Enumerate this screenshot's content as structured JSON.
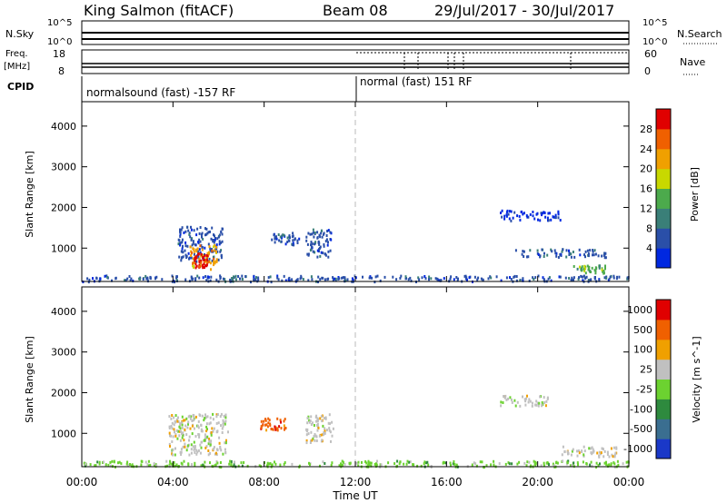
{
  "header": {
    "station": "King Salmon (fitACF)",
    "beam": "Beam 08",
    "dates": "29/Jul/2017 - 30/Jul/2017"
  },
  "sky_panel": {
    "left_label": "N.Sky",
    "left_ticks": [
      "10^5",
      "10^0"
    ],
    "right_label": "N.Search",
    "right_ticks": [
      "10^5",
      "10^0"
    ]
  },
  "freq_panel": {
    "left_label_1": "Freq.",
    "left_label_2": "[MHz]",
    "left_ticks": [
      "18",
      "8"
    ],
    "right_label": "Nave",
    "right_ticks": [
      "60",
      "0"
    ]
  },
  "cpid_panel": {
    "label": "CPID",
    "modes": [
      "normalsound (fast) -157 RF",
      "normal (fast) 151 RF"
    ]
  },
  "chart_data": [
    {
      "type": "heatmap",
      "name": "power",
      "xlabel": "",
      "ylabel": "Slant Range [km]",
      "x_range_hours": [
        0,
        24
      ],
      "ylim": [
        180,
        4600
      ],
      "yticks": [
        1000,
        2000,
        3000,
        4000
      ],
      "colorbar_label": "Power [dB]",
      "colorbar_ticks": [
        "4",
        "8",
        "12",
        "16",
        "20",
        "24",
        "28"
      ],
      "colorbar_colors": [
        "#0028e0",
        "#2a4fa8",
        "#3a7f78",
        "#4caa4c",
        "#c8d800",
        "#f0a000",
        "#f06000",
        "#e00000"
      ],
      "patches": [
        {
          "t0": 0.0,
          "t1": 24.0,
          "r0": 200,
          "r1": 350,
          "level": 1
        },
        {
          "t0": 4.2,
          "t1": 6.2,
          "r0": 700,
          "r1": 1550,
          "level": 1
        },
        {
          "t0": 4.7,
          "t1": 5.9,
          "r0": 500,
          "r1": 1100,
          "level": 5
        },
        {
          "t0": 4.9,
          "t1": 5.5,
          "r0": 550,
          "r1": 900,
          "level": 7
        },
        {
          "t0": 9.8,
          "t1": 11.0,
          "r0": 800,
          "r1": 1500,
          "level": 1
        },
        {
          "t0": 8.3,
          "t1": 9.5,
          "r0": 1100,
          "r1": 1400,
          "level": 1
        },
        {
          "t0": 18.3,
          "t1": 21.0,
          "r0": 1700,
          "r1": 1950,
          "level": 0
        },
        {
          "t0": 19.0,
          "t1": 23.0,
          "r0": 800,
          "r1": 1000,
          "level": 1
        },
        {
          "t0": 21.5,
          "t1": 23.0,
          "r0": 400,
          "r1": 600,
          "level": 3
        }
      ]
    },
    {
      "type": "heatmap",
      "name": "velocity",
      "xlabel": "Time UT",
      "ylabel": "Slant Range [km]",
      "x_range_hours": [
        0,
        24
      ],
      "xticks": [
        "00:00",
        "04:00",
        "08:00",
        "12:00",
        "16:00",
        "20:00",
        "00:00"
      ],
      "ylim": [
        180,
        4600
      ],
      "yticks": [
        1000,
        2000,
        3000,
        4000
      ],
      "colorbar_label": "Velocity [m s^-1]",
      "colorbar_ticks": [
        "1000",
        "500",
        "100",
        "25",
        "-25",
        "-100",
        "-500",
        "-1000"
      ],
      "colorbar_colors": [
        "#1a38c8",
        "#3a6e90",
        "#2e8a3e",
        "#6cd230",
        "#c0c0c0",
        "#f0a000",
        "#f06000",
        "#e00000"
      ],
      "patches": [
        {
          "t0": 0.0,
          "t1": 24.0,
          "r0": 200,
          "r1": 350,
          "level": 3
        },
        {
          "t0": 3.8,
          "t1": 6.4,
          "r0": 500,
          "r1": 1500,
          "level": 4
        },
        {
          "t0": 7.8,
          "t1": 9.0,
          "r0": 1100,
          "r1": 1400,
          "level": 6
        },
        {
          "t0": 9.8,
          "t1": 11.0,
          "r0": 800,
          "r1": 1500,
          "level": 4
        },
        {
          "t0": 18.3,
          "t1": 20.5,
          "r0": 1700,
          "r1": 1950,
          "level": 4
        },
        {
          "t0": 21.0,
          "t1": 23.5,
          "r0": 450,
          "r1": 700,
          "level": 4
        }
      ]
    }
  ]
}
